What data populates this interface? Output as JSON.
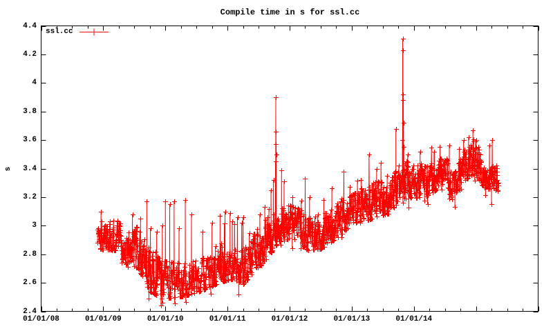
{
  "chart_data": {
    "type": "scatter",
    "title": "Compile time in s for ssl.cc",
    "xlabel": "",
    "ylabel": "s",
    "grid": false,
    "legend": {
      "position": "top-left-inside",
      "entries": [
        {
          "label": "ssl.cc",
          "color": "#ff0000",
          "marker": "plus",
          "style": "linespoints"
        }
      ]
    },
    "x_range_years": [
      2008,
      2016
    ],
    "ylim": [
      2.4,
      4.4
    ],
    "y_tick_step": 0.2,
    "x_major_tick_step_years": 1,
    "x_minor_tick_step_years": 0.25,
    "axis_color": "#000000",
    "x_tick_labels": [
      {
        "year": 2008,
        "label": "01/01/08"
      },
      {
        "year": 2009,
        "label": "01/01/09"
      },
      {
        "year": 2010,
        "label": "01/01/10"
      },
      {
        "year": 2011,
        "label": "01/01/11"
      },
      {
        "year": 2012,
        "label": "01/01/12"
      },
      {
        "year": 2013,
        "label": "01/01/13"
      },
      {
        "year": 2014,
        "label": "01/01/14"
      }
    ],
    "y_tick_labels": [
      {
        "v": 2.4,
        "label": "2.4"
      },
      {
        "v": 2.6,
        "label": "2.6"
      },
      {
        "v": 2.8,
        "label": "2.8"
      },
      {
        "v": 3.0,
        "label": "3"
      },
      {
        "v": 3.2,
        "label": "3.2"
      },
      {
        "v": 3.4,
        "label": "3.4"
      },
      {
        "v": 3.6,
        "label": "3.6"
      },
      {
        "v": 3.8,
        "label": "3.8"
      },
      {
        "v": 4.0,
        "label": "4"
      },
      {
        "v": 4.2,
        "label": "4.2"
      },
      {
        "v": 4.4,
        "label": "4.4"
      }
    ],
    "series": [
      {
        "name": "ssl.cc",
        "color": "#ff0000",
        "style": "linespoints",
        "marker": "plus",
        "t_start": 2008.907,
        "t_end": 2015.36,
        "t_step": 0.003,
        "seed": 1337,
        "noise": {
          "persistence": 0.55,
          "epsilon": 0.45,
          "outlier_hi_p": 0.012,
          "outlier_hi_max": 0.28,
          "outlier_lo_p": 0.008,
          "outlier_lo_max": 0.06
        },
        "envelope": [
          [
            2008.9,
            2.83,
            3.06
          ],
          [
            2009.25,
            2.82,
            3.04
          ],
          [
            2009.35,
            2.72,
            2.96
          ],
          [
            2009.5,
            2.76,
            3.02
          ],
          [
            2009.62,
            2.64,
            2.95
          ],
          [
            2009.75,
            2.53,
            2.84
          ],
          [
            2009.95,
            2.48,
            2.76
          ],
          [
            2010.3,
            2.5,
            2.74
          ],
          [
            2010.6,
            2.54,
            2.78
          ],
          [
            2010.9,
            2.6,
            2.86
          ],
          [
            2011.1,
            2.62,
            2.88
          ],
          [
            2011.25,
            2.58,
            2.83
          ],
          [
            2011.45,
            2.68,
            2.97
          ],
          [
            2011.65,
            2.77,
            3.07
          ],
          [
            2011.82,
            2.88,
            3.14
          ],
          [
            2012.0,
            2.9,
            3.15
          ],
          [
            2012.3,
            2.82,
            3.1
          ],
          [
            2012.5,
            2.83,
            3.08
          ],
          [
            2012.75,
            2.9,
            3.16
          ],
          [
            2013.0,
            3.0,
            3.22
          ],
          [
            2013.2,
            3.02,
            3.28
          ],
          [
            2013.42,
            3.06,
            3.32
          ],
          [
            2013.6,
            3.08,
            3.3
          ],
          [
            2013.8,
            3.18,
            3.48
          ],
          [
            2013.95,
            3.18,
            3.44
          ],
          [
            2014.2,
            3.2,
            3.42
          ],
          [
            2014.5,
            3.28,
            3.5
          ],
          [
            2014.64,
            3.16,
            3.36
          ],
          [
            2014.85,
            3.32,
            3.58
          ],
          [
            2014.98,
            3.36,
            3.62
          ],
          [
            2015.12,
            3.26,
            3.46
          ],
          [
            2015.36,
            3.24,
            3.4
          ]
        ],
        "events": [
          [
            2009.47,
            3.08
          ],
          [
            2009.6,
            3.05
          ],
          [
            2009.7,
            3.17
          ],
          [
            2009.86,
            2.96
          ],
          [
            2009.95,
            3.0
          ],
          [
            2010.0,
            3.17
          ],
          [
            2010.07,
            3.15
          ],
          [
            2010.14,
            3.17
          ],
          [
            2010.22,
            2.98
          ],
          [
            2010.32,
            3.18
          ],
          [
            2010.42,
            3.08
          ],
          [
            2010.6,
            2.96
          ],
          [
            2010.75,
            3.02
          ],
          [
            2010.88,
            3.07
          ],
          [
            2010.96,
            3.1
          ],
          [
            2011.04,
            3.09
          ],
          [
            2011.18,
            2.52
          ],
          [
            2011.35,
            2.95
          ],
          [
            2011.52,
            3.08
          ],
          [
            2011.6,
            3.13
          ],
          [
            2011.7,
            3.25
          ],
          [
            2011.74,
            3.32
          ],
          [
            2011.772,
            3.45
          ],
          [
            2011.777,
            3.9
          ],
          [
            2011.78,
            3.66
          ],
          [
            2011.783,
            3.57
          ],
          [
            2011.786,
            3.5
          ],
          [
            2011.87,
            3.39
          ],
          [
            2011.91,
            3.31
          ],
          [
            2012.05,
            3.2
          ],
          [
            2012.25,
            3.33
          ],
          [
            2012.32,
            3.2
          ],
          [
            2012.55,
            3.18
          ],
          [
            2012.68,
            3.26
          ],
          [
            2012.83,
            3.19
          ],
          [
            2012.97,
            3.27
          ],
          [
            2013.15,
            3.32
          ],
          [
            2013.3,
            3.25
          ],
          [
            2013.4,
            3.4
          ],
          [
            2013.47,
            3.44
          ],
          [
            2013.57,
            3.35
          ],
          [
            2013.71,
            3.68
          ],
          [
            2013.815,
            3.6
          ],
          [
            2013.82,
            4.31
          ],
          [
            2013.823,
            4.23
          ],
          [
            2013.826,
            3.92
          ],
          [
            2013.829,
            3.88
          ],
          [
            2013.833,
            3.72
          ],
          [
            2013.837,
            3.55
          ],
          [
            2013.9,
            3.5
          ],
          [
            2014.1,
            3.52
          ],
          [
            2014.22,
            3.15
          ],
          [
            2014.33,
            3.52
          ],
          [
            2014.42,
            3.55
          ],
          [
            2014.57,
            3.56
          ],
          [
            2014.66,
            3.13
          ],
          [
            2014.8,
            3.6
          ],
          [
            2014.88,
            3.62
          ],
          [
            2014.95,
            3.67
          ],
          [
            2015.0,
            3.6
          ],
          [
            2015.07,
            3.5
          ],
          [
            2015.25,
            3.15
          ],
          [
            2015.33,
            3.42
          ]
        ]
      }
    ]
  }
}
